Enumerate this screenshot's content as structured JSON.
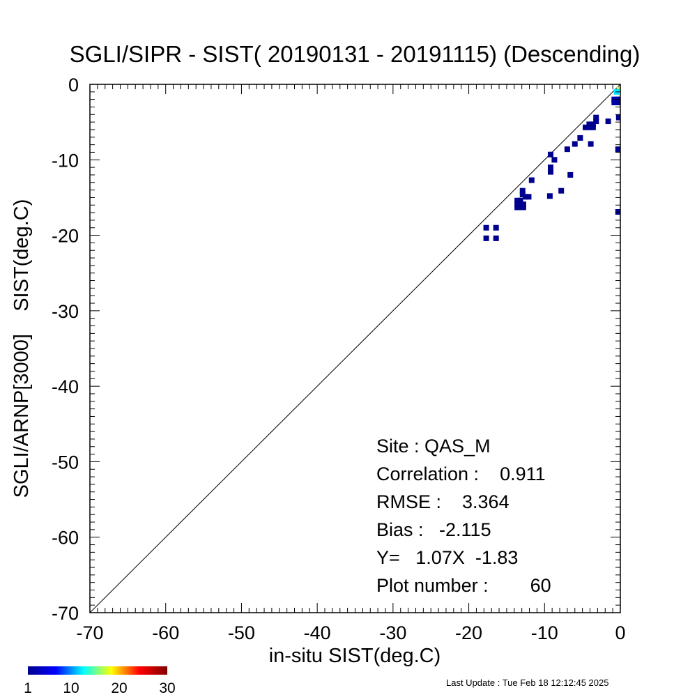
{
  "chart_data": {
    "type": "scatter",
    "title": "SGLI/SIPR - SIST( 20190131 - 20191115) (Descending)",
    "xlabel": "in-situ SIST(deg.C)",
    "ylabel": "SGLI/ARNP[3000]    SIST(deg.C)",
    "xlim": [
      -70,
      0
    ],
    "ylim": [
      -70,
      0
    ],
    "xticks": [
      -70,
      -60,
      -50,
      -40,
      -30,
      -20,
      -10,
      0
    ],
    "yticks": [
      -70,
      -60,
      -50,
      -40,
      -30,
      -20,
      -10,
      0
    ],
    "xtick_labels": [
      "-70",
      "-60",
      "-50",
      "-40",
      "-30",
      "-20",
      "-10",
      "0"
    ],
    "ytick_labels": [
      "-70",
      "-60",
      "-50",
      "-40",
      "-30",
      "-20",
      "-10",
      "0"
    ],
    "reference_line": "1:1",
    "grid": false,
    "points": [
      {
        "x": -0.1,
        "y": -0.7,
        "c": 17
      },
      {
        "x": -0.5,
        "y": -1.0,
        "c": 12
      },
      {
        "x": -0.8,
        "y": -2.0,
        "c": 2
      },
      {
        "x": -0.4,
        "y": -2.0,
        "c": 2
      },
      {
        "x": -0.1,
        "y": -2.0,
        "c": 2
      },
      {
        "x": -0.8,
        "y": -2.4,
        "c": 2
      },
      {
        "x": -0.4,
        "y": -2.4,
        "c": 2
      },
      {
        "x": -0.1,
        "y": -2.4,
        "c": 2
      },
      {
        "x": -0.2,
        "y": -4.4,
        "c": 1
      },
      {
        "x": -0.3,
        "y": -8.6,
        "c": 1
      },
      {
        "x": -0.3,
        "y": -16.9,
        "c": 1
      },
      {
        "x": -1.6,
        "y": -4.9,
        "c": 1
      },
      {
        "x": -3.2,
        "y": -4.4,
        "c": 1
      },
      {
        "x": -3.2,
        "y": -4.9,
        "c": 1
      },
      {
        "x": -3.6,
        "y": -5.3,
        "c": 1
      },
      {
        "x": -4.1,
        "y": -5.3,
        "c": 1
      },
      {
        "x": -3.6,
        "y": -5.7,
        "c": 1
      },
      {
        "x": -4.1,
        "y": -5.7,
        "c": 1
      },
      {
        "x": -4.6,
        "y": -5.7,
        "c": 1
      },
      {
        "x": -3.9,
        "y": -7.9,
        "c": 1
      },
      {
        "x": -5.3,
        "y": -7.1,
        "c": 1
      },
      {
        "x": -6.0,
        "y": -7.9,
        "c": 1
      },
      {
        "x": -7.0,
        "y": -8.6,
        "c": 1
      },
      {
        "x": -8.7,
        "y": -10.0,
        "c": 1
      },
      {
        "x": -9.2,
        "y": -9.3,
        "c": 1
      },
      {
        "x": -9.2,
        "y": -11.0,
        "c": 1
      },
      {
        "x": -9.2,
        "y": -11.6,
        "c": 1
      },
      {
        "x": -6.6,
        "y": -12.0,
        "c": 1
      },
      {
        "x": -11.7,
        "y": -12.7,
        "c": 1
      },
      {
        "x": -12.9,
        "y": -14.1,
        "c": 1
      },
      {
        "x": -12.9,
        "y": -14.6,
        "c": 1
      },
      {
        "x": -12.5,
        "y": -14.9,
        "c": 1
      },
      {
        "x": -12.1,
        "y": -14.9,
        "c": 1
      },
      {
        "x": -7.8,
        "y": -14.1,
        "c": 1
      },
      {
        "x": -9.3,
        "y": -14.8,
        "c": 1
      },
      {
        "x": -13.6,
        "y": -15.4,
        "c": 1
      },
      {
        "x": -13.2,
        "y": -15.4,
        "c": 1
      },
      {
        "x": -13.6,
        "y": -15.9,
        "c": 1
      },
      {
        "x": -13.2,
        "y": -15.9,
        "c": 1
      },
      {
        "x": -12.8,
        "y": -15.9,
        "c": 1
      },
      {
        "x": -13.6,
        "y": -16.3,
        "c": 1
      },
      {
        "x": -13.2,
        "y": -16.3,
        "c": 1
      },
      {
        "x": -12.8,
        "y": -16.3,
        "c": 1
      },
      {
        "x": -17.7,
        "y": -19.0,
        "c": 1
      },
      {
        "x": -16.4,
        "y": -19.0,
        "c": 1
      },
      {
        "x": -17.7,
        "y": -20.4,
        "c": 1
      },
      {
        "x": -16.4,
        "y": -20.4,
        "c": 1
      }
    ],
    "colorbar": {
      "min": 1,
      "max": 30,
      "ticks": [
        "1",
        "10",
        "20",
        "30"
      ],
      "colors": [
        "#00008f",
        "#0000ff",
        "#00ffff",
        "#ffff00",
        "#ff0000",
        "#800000"
      ]
    }
  },
  "stats": {
    "site": "Site : QAS_M",
    "correlation": "Correlation :    0.911",
    "rmse": "RMSE :    3.364",
    "bias": "Bias :   -2.115",
    "regression": "Y=   1.07X  -1.83",
    "plot_number": "Plot number :        60"
  },
  "footer": "Last Update : Tue Feb 18 12:12:45 2025"
}
